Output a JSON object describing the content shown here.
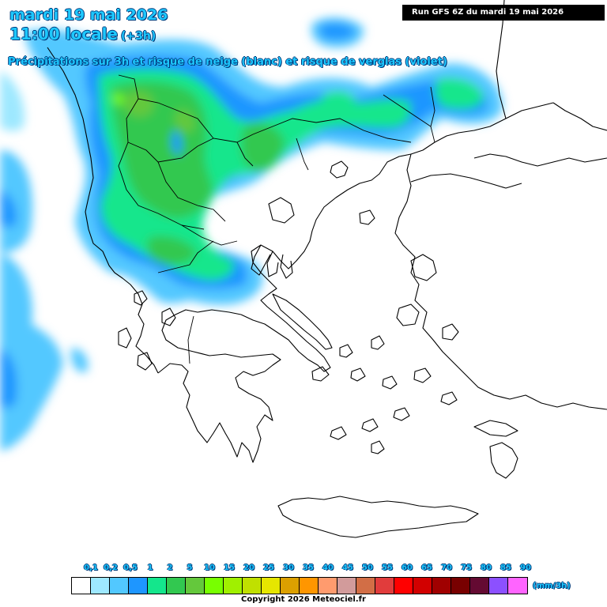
{
  "header": {
    "date_line": "mardi 19 mai 2026",
    "time_local": "11:00 locale",
    "time_offset": "(+3h)",
    "subtitle": "Précipitations sur 3h et risque de neige (blanc) et risque de verglas (violet)",
    "run_info": "Run GFS 6Z du mardi 19 mai 2026"
  },
  "legend": {
    "units": "(mm/3h)",
    "labels": [
      "0,1",
      "0,2",
      "0,5",
      "1",
      "2",
      "5",
      "10",
      "15",
      "20",
      "25",
      "30",
      "35",
      "40",
      "45",
      "50",
      "55",
      "60",
      "65",
      "70",
      "75",
      "80",
      "85",
      "90"
    ],
    "colors": [
      "#ffffff",
      "#9ee8ff",
      "#52c8ff",
      "#1e96ff",
      "#14e68c",
      "#32c850",
      "#64c83c",
      "#78ff00",
      "#a0f000",
      "#c0e000",
      "#e6e600",
      "#dca000",
      "#ff9600",
      "#ff9b6e",
      "#d29b9b",
      "#d26e46",
      "#e13c3c",
      "#ff0000",
      "#d20000",
      "#a00000",
      "#780000",
      "#640a32",
      "#8c50ff"
    ],
    "extra_color": "#ff64ff"
  },
  "footer": {
    "copyright": "Copyright 2026 Meteociel.fr"
  }
}
